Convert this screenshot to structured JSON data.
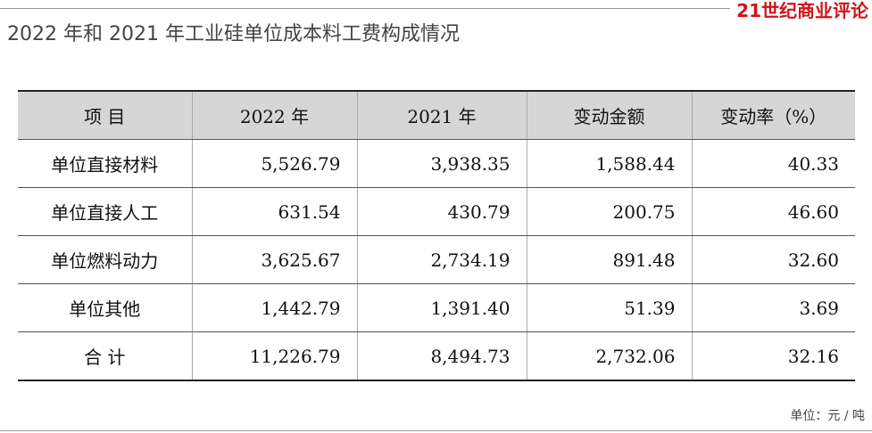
{
  "header": {
    "title": "2022 年和 2021 年工业硅单位成本料工费构成情况",
    "brand": "21世纪商业评论"
  },
  "table": {
    "columns": [
      "项 目",
      "2022 年",
      "2021 年",
      "变动金额",
      "变动率（%）"
    ],
    "rows": [
      [
        "单位直接材料",
        "5,526.79",
        "3,938.35",
        "1,588.44",
        "40.33"
      ],
      [
        "单位直接人工",
        "631.54",
        "430.79",
        "200.75",
        "46.60"
      ],
      [
        "单位燃料动力",
        "3,625.67",
        "2,734.19",
        "891.48",
        "32.60"
      ],
      [
        "单位其他",
        "1,442.79",
        "1,391.40",
        "51.39",
        "3.69"
      ],
      [
        "合 计",
        "11,226.79",
        "8,494.73",
        "2,732.06",
        "32.16"
      ]
    ]
  },
  "footer": {
    "unit": "单位：元 / 吨"
  }
}
